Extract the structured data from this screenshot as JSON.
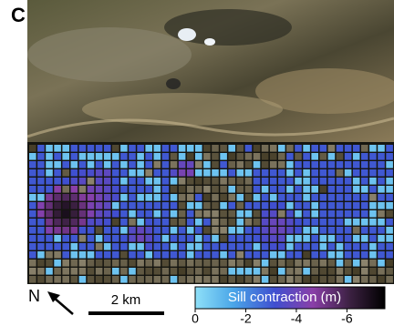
{
  "panel_label": "C",
  "north_label": "N",
  "scale_bar_label": "2 km",
  "colorbar": {
    "label": "Sill contraction (m)",
    "lim": [
      0,
      -7.5
    ],
    "ticks": [
      0,
      -2,
      -4,
      -6
    ]
  }
}
